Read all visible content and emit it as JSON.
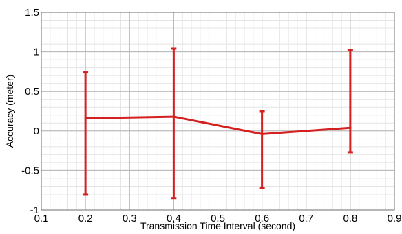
{
  "chart_data": {
    "type": "line",
    "title": "",
    "xlabel": "Transmission Time Interval (second)",
    "ylabel": "Accuracy (meter)",
    "xlim": [
      0.1,
      0.9
    ],
    "ylim": [
      -1,
      1.5
    ],
    "xticks": [
      0.1,
      0.2,
      0.3,
      0.4,
      0.5,
      0.6,
      0.7,
      0.8,
      0.9
    ],
    "xtick_labels": [
      "0.1",
      "0.2",
      "0.3",
      "0.4",
      "0.5",
      "0.6",
      "0.7",
      "0.8",
      "0.9"
    ],
    "yticks": [
      -1,
      -0.5,
      0,
      0.5,
      1,
      1.5
    ],
    "ytick_labels": [
      "-1",
      "-0.5",
      "0",
      "0.5",
      "1",
      "1.5"
    ],
    "grid": true,
    "minor_grid": true,
    "legend": "none",
    "series": [
      {
        "color": "#d42020",
        "x": [
          0.2,
          0.4,
          0.6,
          0.8
        ],
        "y": [
          0.16,
          0.18,
          -0.04,
          0.04
        ],
        "error_upper": [
          0.74,
          1.04,
          0.25,
          1.02
        ],
        "error_lower": [
          -0.8,
          -0.85,
          -0.72,
          -0.27
        ]
      }
    ]
  }
}
